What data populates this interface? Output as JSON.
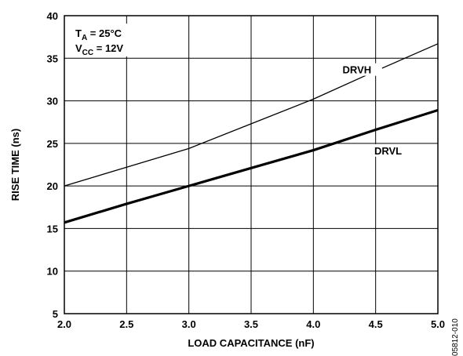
{
  "chart_data": {
    "type": "line",
    "xlabel": "LOAD CAPACITANCE (nF)",
    "ylabel": "RISE TIME (ns)",
    "xlim": [
      2.0,
      5.0
    ],
    "ylim": [
      5,
      40
    ],
    "x_ticks": [
      "2.0",
      "2.5",
      "3.0",
      "3.5",
      "4.0",
      "4.5",
      "5.0"
    ],
    "y_ticks": [
      "5",
      "10",
      "15",
      "20",
      "25",
      "30",
      "35",
      "40"
    ],
    "grid": true,
    "series": [
      {
        "name": "DRVH",
        "x": [
          2.0,
          2.5,
          3.0,
          3.5,
          4.0,
          4.5,
          5.0
        ],
        "y": [
          20.0,
          22.2,
          24.4,
          27.3,
          30.2,
          33.5,
          36.7
        ]
      },
      {
        "name": "DRVL",
        "x": [
          2.0,
          2.5,
          3.0,
          3.5,
          4.0,
          4.5,
          5.0
        ],
        "y": [
          15.7,
          17.9,
          20.0,
          22.1,
          24.2,
          26.6,
          28.9
        ]
      }
    ],
    "annotations": {
      "ta_main": "T",
      "ta_sub": "A",
      "ta_rest": " = 25°C",
      "vcc_main": "V",
      "vcc_sub": "CC",
      "vcc_rest": " = 12V"
    },
    "figure_code": "05812-010"
  }
}
